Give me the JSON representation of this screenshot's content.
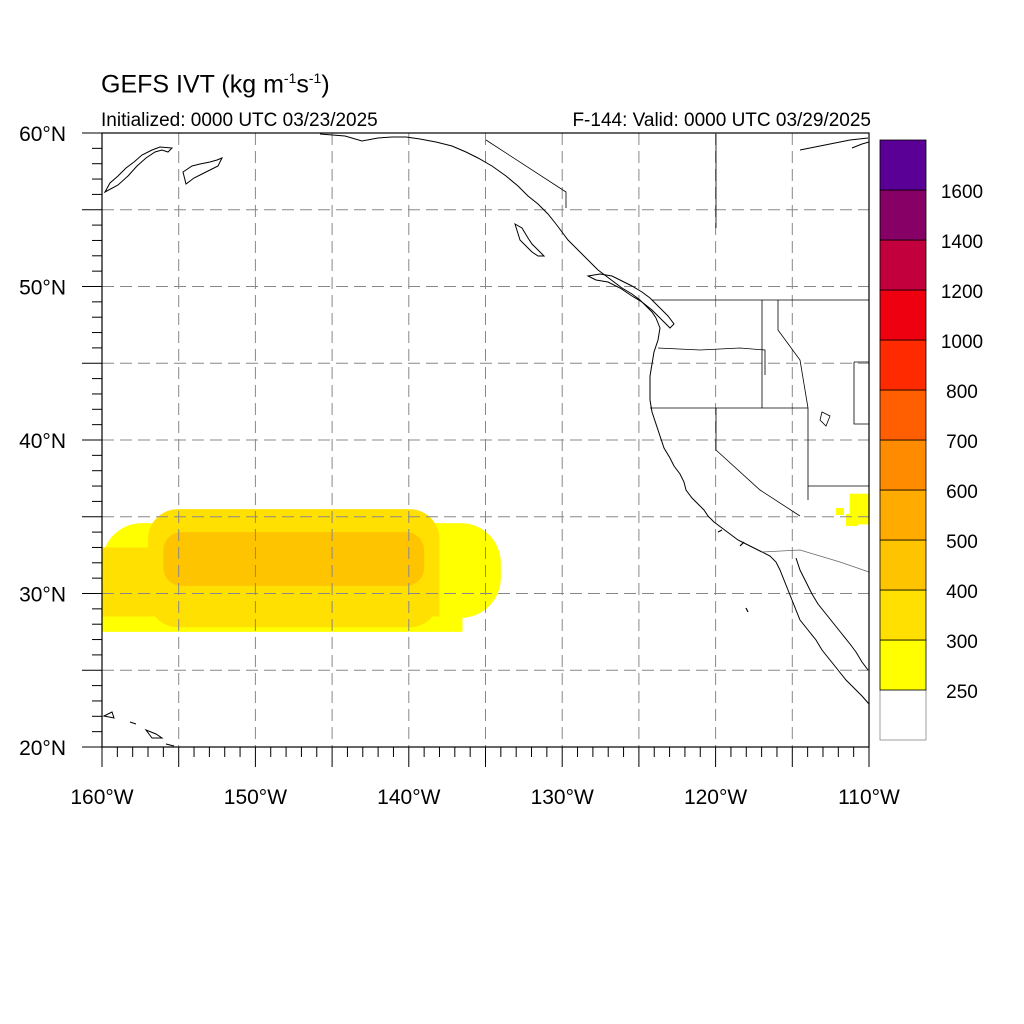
{
  "title": {
    "main": "GEFS IVT (kg m",
    "exp1": "-1",
    "mid": "s",
    "exp2": "-1",
    "end": ")"
  },
  "initialized": "Initialized: 0000 UTC 03/23/2025",
  "valid": "F-144: Valid: 0000 UTC 03/29/2025",
  "map": {
    "lon_range": [
      -160,
      -110
    ],
    "lat_range": [
      20,
      60
    ],
    "grid_spacing_deg": 5,
    "gridlines": "dashed gray",
    "lon_tick_labels": [
      "160°W",
      "150°W",
      "140°W",
      "130°W",
      "120°W",
      "110°W"
    ],
    "lat_tick_labels": [
      "20°N",
      "30°N",
      "40°N",
      "50°N",
      "60°N"
    ],
    "boundaries": [
      "coastlines",
      "country borders",
      "US state borders"
    ]
  },
  "ivt_field": {
    "type": "filled contour",
    "units": "kg m-1 s-1",
    "plume": {
      "lon_extent": [
        -160,
        -134
      ],
      "lat_extent": [
        27.5,
        35.5
      ],
      "max_band": "400-500",
      "core_lon_extent": [
        -156,
        -139
      ],
      "core_lat_extent": [
        30.5,
        34
      ]
    },
    "minor_patch": {
      "lon_extent": [
        -111,
        -110
      ],
      "lat_extent": [
        34.5,
        36.5
      ],
      "band": "250-300"
    }
  },
  "colorbar": {
    "labels": [
      "250",
      "300",
      "400",
      "500",
      "600",
      "700",
      "800",
      "1000",
      "1200",
      "1400",
      "1600"
    ],
    "colors": [
      "#ffffff",
      "#ffff00",
      "#ffe000",
      "#ffc400",
      "#ffab00",
      "#ff8c00",
      "#ff5f00",
      "#ff2a00",
      "#ee0010",
      "#c2003e",
      "#870066",
      "#5a0096"
    ]
  }
}
